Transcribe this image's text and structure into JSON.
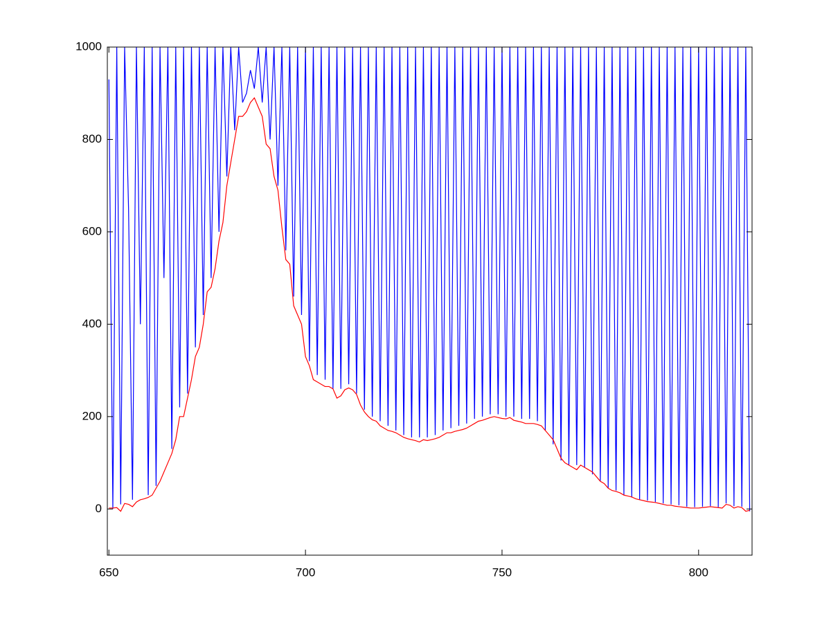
{
  "chart_data": {
    "type": "line",
    "x": [
      650,
      651,
      652,
      653,
      654,
      655,
      656,
      657,
      658,
      659,
      660,
      661,
      662,
      663,
      664,
      665,
      666,
      667,
      668,
      669,
      670,
      671,
      672,
      673,
      674,
      675,
      676,
      677,
      678,
      679,
      680,
      681,
      682,
      683,
      684,
      685,
      686,
      687,
      688,
      689,
      690,
      691,
      692,
      693,
      694,
      695,
      696,
      697,
      698,
      699,
      700,
      701,
      702,
      703,
      704,
      705,
      706,
      707,
      708,
      709,
      710,
      711,
      712,
      713,
      714,
      715,
      716,
      717,
      718,
      719,
      720,
      721,
      722,
      723,
      724,
      725,
      726,
      727,
      728,
      729,
      730,
      731,
      732,
      733,
      734,
      735,
      736,
      737,
      738,
      739,
      740,
      741,
      742,
      743,
      744,
      745,
      746,
      747,
      748,
      749,
      750,
      751,
      752,
      753,
      754,
      755,
      756,
      757,
      758,
      759,
      760,
      761,
      762,
      763,
      764,
      765,
      766,
      767,
      768,
      769,
      770,
      771,
      772,
      773,
      774,
      775,
      776,
      777,
      778,
      779,
      780,
      781,
      782,
      783,
      784,
      785,
      786,
      787,
      788,
      789,
      790,
      791,
      792,
      793,
      794,
      795,
      796,
      797,
      798,
      799,
      800,
      801,
      802,
      803,
      804,
      805,
      806,
      807,
      808,
      809,
      810,
      811,
      812,
      813
    ],
    "series": [
      {
        "color": "#0000ff",
        "values": [
          930,
          0,
          1000,
          10,
          1000,
          650,
          20,
          1000,
          400,
          1000,
          30,
          1000,
          50,
          1000,
          500,
          1000,
          130,
          1000,
          220,
          1000,
          250,
          1000,
          350,
          1000,
          420,
          1000,
          500,
          1000,
          600,
          1000,
          720,
          1000,
          820,
          1000,
          880,
          900,
          950,
          910,
          1000,
          880,
          1000,
          800,
          1000,
          700,
          1000,
          560,
          1000,
          460,
          1000,
          420,
          1000,
          320,
          1000,
          290,
          1000,
          280,
          1000,
          260,
          1000,
          260,
          1000,
          270,
          1000,
          250,
          1000,
          215,
          1000,
          200,
          1000,
          190,
          1000,
          180,
          1000,
          170,
          1000,
          160,
          1000,
          155,
          1000,
          155,
          1000,
          155,
          1000,
          160,
          1000,
          170,
          1000,
          175,
          1000,
          180,
          1000,
          185,
          1000,
          195,
          1000,
          200,
          1000,
          205,
          1000,
          205,
          1000,
          200,
          1000,
          200,
          1000,
          195,
          1000,
          195,
          1000,
          190,
          1000,
          170,
          1000,
          140,
          1000,
          105,
          1000,
          95,
          1000,
          95,
          1000,
          90,
          1000,
          75,
          1000,
          60,
          1000,
          45,
          1000,
          40,
          1000,
          30,
          1000,
          25,
          1000,
          20,
          1000,
          18,
          1000,
          15,
          1000,
          12,
          1000,
          10,
          1000,
          8,
          1000,
          5,
          1000,
          4,
          1000,
          5,
          1000,
          6,
          1000,
          4,
          1000,
          12,
          1000,
          6,
          1000,
          5,
          1000,
          -5
        ]
      },
      {
        "color": "#ff0000",
        "values": [
          2,
          2,
          3,
          -5,
          12,
          10,
          5,
          15,
          20,
          22,
          25,
          30,
          45,
          60,
          80,
          100,
          120,
          150,
          200,
          200,
          240,
          280,
          330,
          350,
          400,
          470,
          480,
          520,
          580,
          620,
          700,
          750,
          800,
          850,
          850,
          860,
          880,
          890,
          870,
          850,
          790,
          780,
          720,
          690,
          610,
          540,
          530,
          440,
          420,
          400,
          330,
          310,
          280,
          275,
          270,
          265,
          265,
          260,
          240,
          245,
          258,
          262,
          258,
          248,
          225,
          210,
          200,
          193,
          190,
          180,
          175,
          170,
          168,
          165,
          160,
          155,
          152,
          150,
          148,
          145,
          150,
          148,
          150,
          152,
          155,
          160,
          165,
          165,
          168,
          170,
          172,
          175,
          180,
          185,
          190,
          192,
          195,
          198,
          200,
          198,
          196,
          195,
          198,
          192,
          190,
          188,
          185,
          185,
          185,
          183,
          180,
          170,
          160,
          150,
          130,
          110,
          100,
          95,
          90,
          85,
          95,
          90,
          85,
          80,
          70,
          60,
          55,
          45,
          40,
          38,
          35,
          30,
          28,
          26,
          22,
          20,
          18,
          16,
          15,
          14,
          12,
          10,
          8,
          8,
          6,
          5,
          4,
          3,
          2,
          2,
          2,
          3,
          4,
          5,
          4,
          3,
          2,
          10,
          8,
          2,
          5,
          3,
          -5,
          -3
        ]
      }
    ],
    "xlim": [
      649.6,
      813.6
    ],
    "ylim": [
      -100,
      1000
    ],
    "xticks": [
      650,
      700,
      750,
      800
    ],
    "yticks": [
      0,
      200,
      400,
      600,
      800,
      1000
    ]
  }
}
